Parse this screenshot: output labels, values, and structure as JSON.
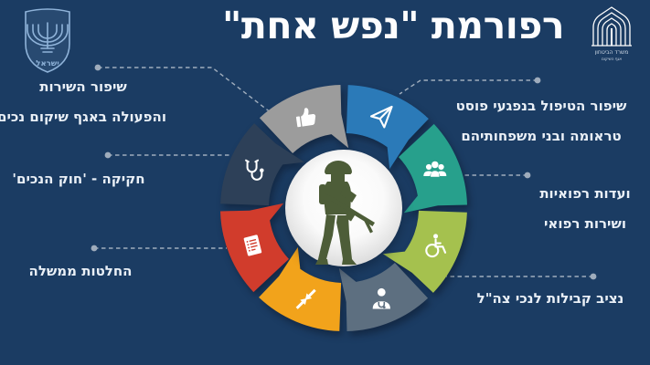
{
  "title": "רפורמת \"נפש אחת\"",
  "colors": {
    "background": "#1b3c63",
    "text": "#eaf0f7",
    "leader": "#aeb9c6",
    "center_circle": "#ffffff",
    "soldier": "#4d5d38"
  },
  "emblem_israel": {
    "caption": "ישראל"
  },
  "emblem_mod": {
    "line1": "משרד הביטחון",
    "line2": "אגף השיקום"
  },
  "diagram": {
    "type": "cycle-donut",
    "center_icon": "soldier-icon",
    "segments": [
      {
        "icon": "paper-plane-icon",
        "color": "#2b7ab8",
        "start": 0,
        "label_ref": "ptsd"
      },
      {
        "icon": "people-icon",
        "color": "#27a08c",
        "start": 45,
        "label_ref": "medical"
      },
      {
        "icon": "wheelchair-icon",
        "color": "#a5c14e",
        "start": 90,
        "label_ref": "ombudsman"
      },
      {
        "icon": "medic-icon",
        "color": "#5d6f80",
        "start": 135,
        "label_ref": "ombudsman"
      },
      {
        "icon": "converge-arrows-icon",
        "color": "#f2a31b",
        "start": 180,
        "label_ref": "government"
      },
      {
        "icon": "document-icon",
        "color": "#d13c2c",
        "start": 225,
        "label_ref": "government"
      },
      {
        "icon": "stethoscope-icon",
        "color": "#2d4058",
        "start": 270,
        "label_ref": "legislation"
      },
      {
        "icon": "thumbs-up-icon",
        "color": "#9c9c9c",
        "start": 315,
        "label_ref": "service"
      }
    ]
  },
  "labels": {
    "ptsd": {
      "lines": [
        "שיפור הטיפול בנפגעי פוסט",
        "טראומה ובני משפחותיהם"
      ]
    },
    "medical": {
      "lines": [
        "ועדות רפואיות",
        "ושירות רפואי"
      ]
    },
    "ombudsman": {
      "lines": [
        "נציב קבילות לנכי צה\"ל"
      ]
    },
    "service": {
      "lines": [
        "שיפור השירות",
        "והפעולה באגף שיקום נכים"
      ]
    },
    "legislation": {
      "lines": [
        "חקיקה - 'חוק הנכים'"
      ]
    },
    "government": {
      "lines": [
        "החלטות ממשלה"
      ]
    }
  }
}
